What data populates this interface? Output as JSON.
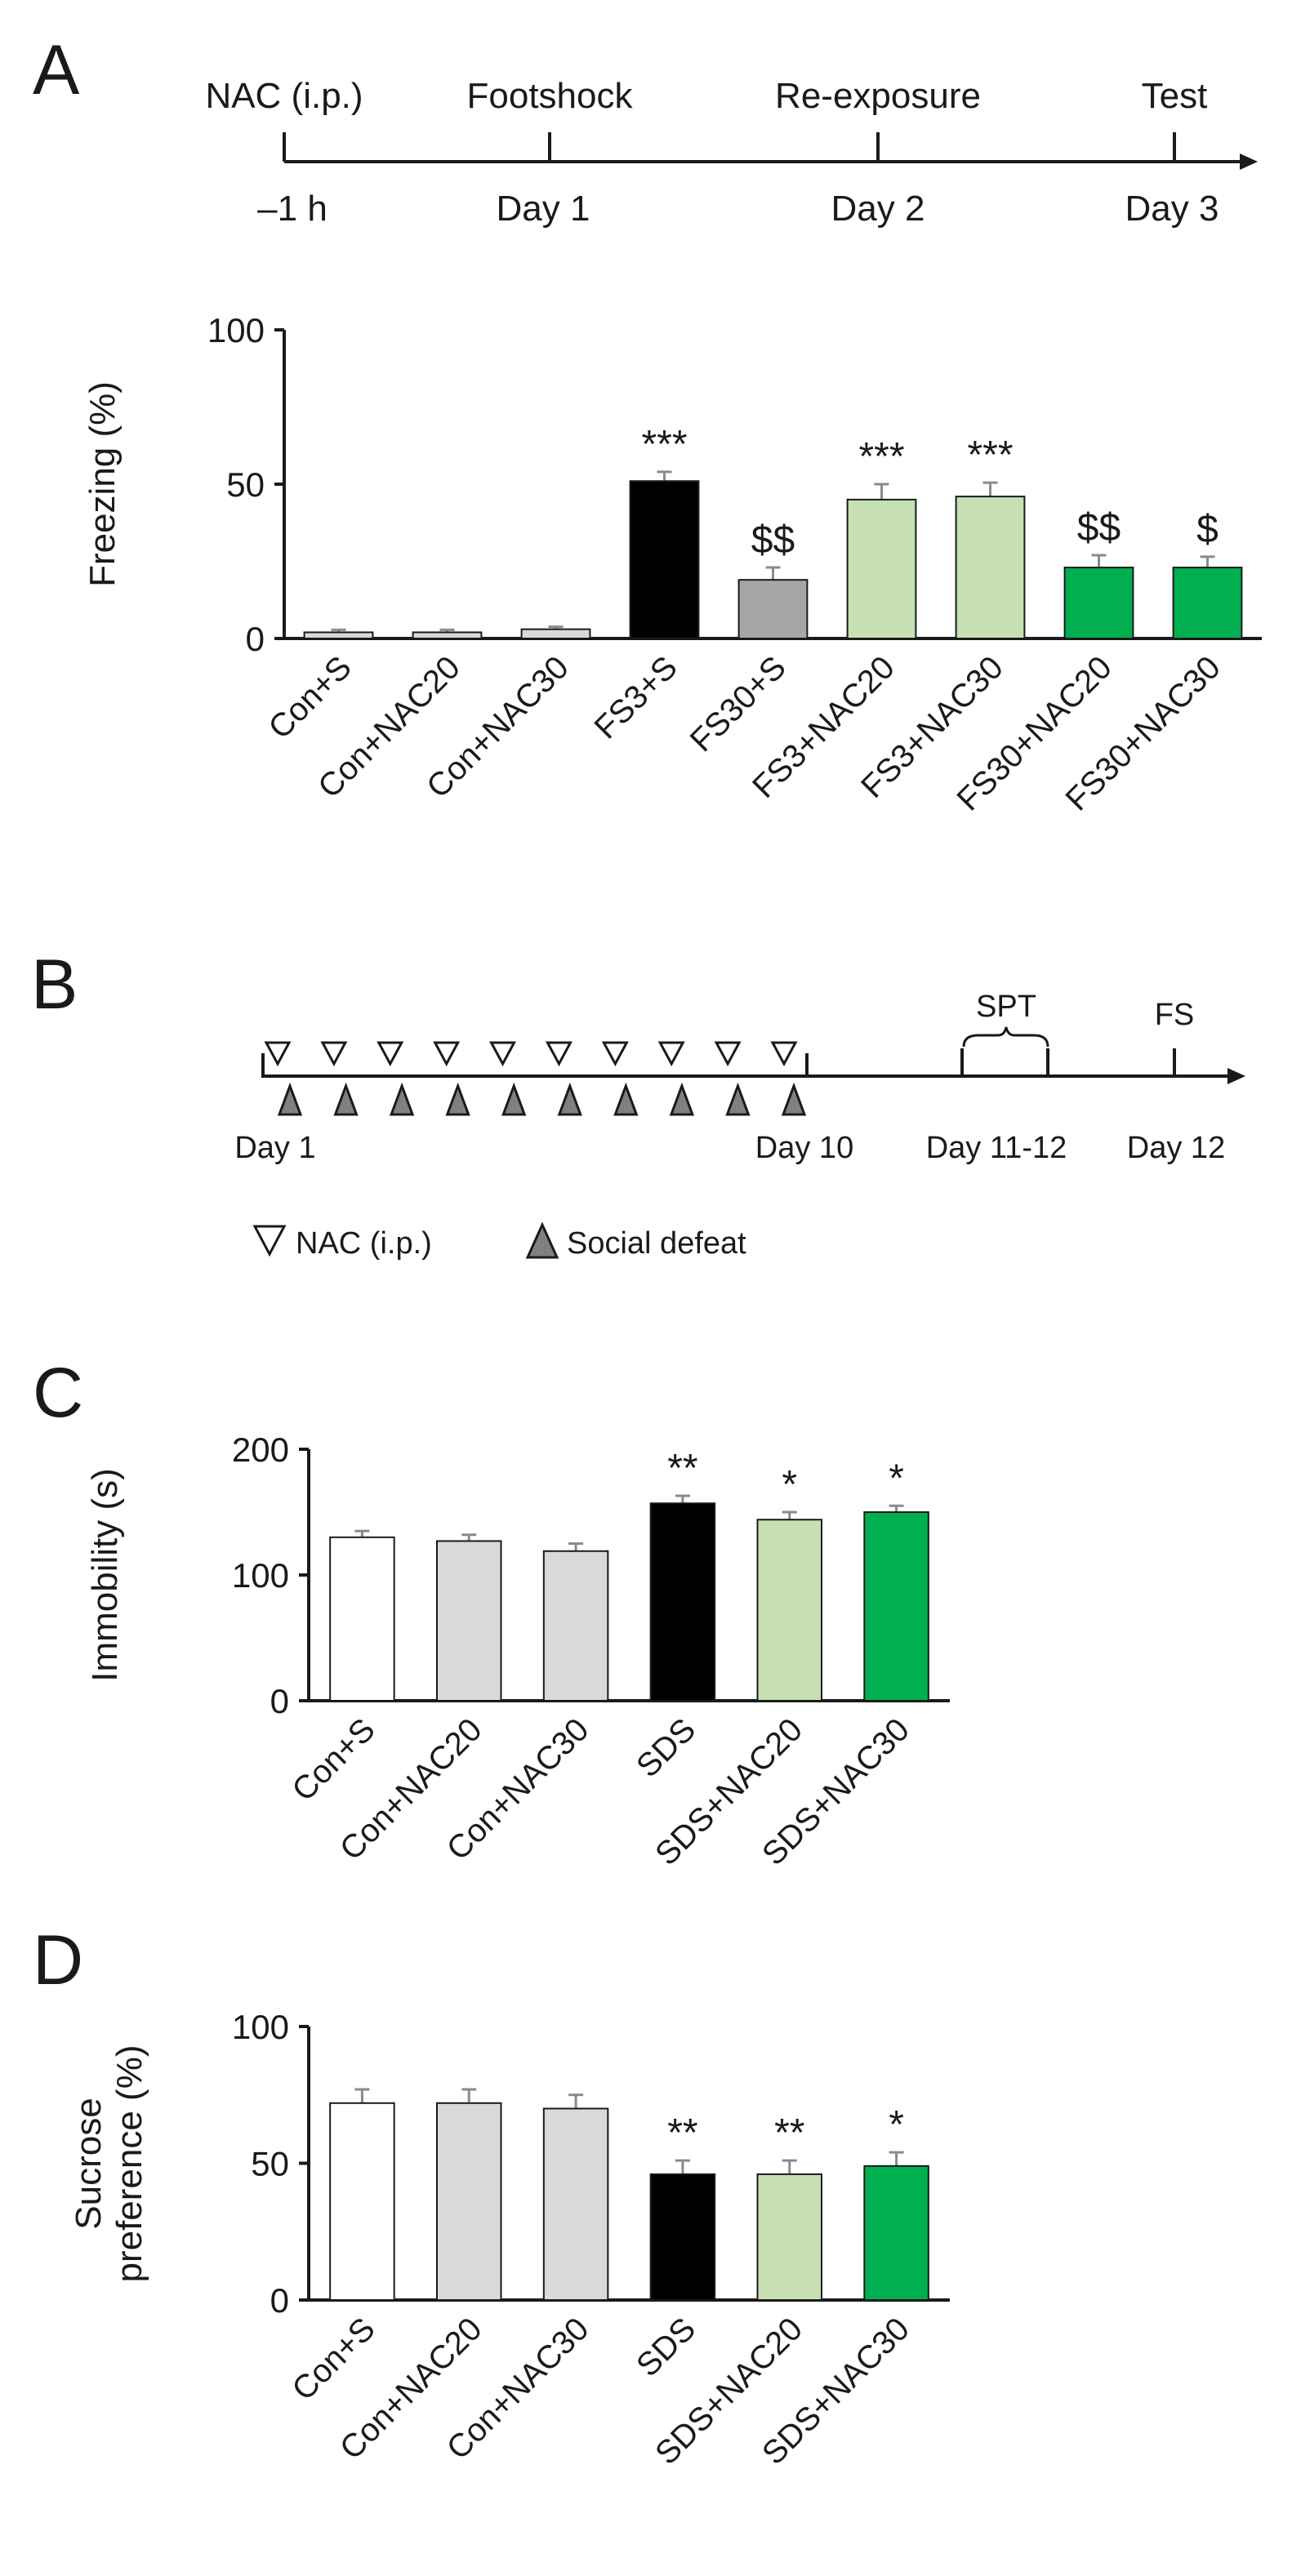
{
  "panel_letters": [
    "A",
    "B",
    "C",
    "D"
  ],
  "timeline_a": {
    "events": [
      {
        "top": "NAC (i.p.)",
        "bottom": "–1 h"
      },
      {
        "top": "Footshock",
        "bottom": "Day 1"
      },
      {
        "top": "Re-exposure",
        "bottom": "Day 2"
      },
      {
        "top": "Test",
        "bottom": "Day 3"
      }
    ]
  },
  "timeline_b": {
    "nac_count": 10,
    "defeat_count": 10,
    "labels": {
      "day1": "Day 1",
      "day10": "Day 10",
      "day11_12": "Day 11-12",
      "day12": "Day 12",
      "spt": "SPT",
      "fs": "FS"
    },
    "legend": {
      "nac": "NAC (i.p.)",
      "defeat": "Social defeat"
    }
  },
  "colors": {
    "white": "#ffffff",
    "light_gray": "#d9d9d9",
    "gray": "#a6a6a6",
    "black": "#000000",
    "light_green": "#c6e0b4",
    "green": "#00b050"
  },
  "chart_data": [
    {
      "panel": "A",
      "type": "bar",
      "ylabel": "Freezing (%)",
      "ylim": [
        0,
        100
      ],
      "yticks": [
        0,
        50,
        100
      ],
      "categories": [
        "Con+S",
        "Con+NAC20",
        "Con+NAC30",
        "FS3+S",
        "FS30+S",
        "FS3+NAC20",
        "FS3+NAC30",
        "FS30+NAC20",
        "FS30+NAC30"
      ],
      "values": [
        2,
        2,
        3,
        51,
        19,
        45,
        46,
        23,
        23
      ],
      "errors": [
        0.8,
        0.8,
        0.8,
        3,
        4,
        5,
        4.5,
        4,
        3.5
      ],
      "fill_keys": [
        "light_gray",
        "light_gray",
        "light_gray",
        "black",
        "gray",
        "light_green",
        "light_green",
        "green",
        "green"
      ],
      "significance": [
        "",
        "",
        "",
        "***",
        "$$",
        "***",
        "***",
        "$$",
        "$"
      ]
    },
    {
      "panel": "C",
      "type": "bar",
      "ylabel": "Immobility (s)",
      "ylim": [
        0,
        200
      ],
      "yticks": [
        0,
        100,
        200
      ],
      "categories": [
        "Con+S",
        "Con+NAC20",
        "Con+NAC30",
        "SDS",
        "SDS+NAC20",
        "SDS+NAC30"
      ],
      "values": [
        130,
        127,
        119,
        157,
        144,
        150
      ],
      "errors": [
        5,
        5,
        6,
        6,
        6,
        5
      ],
      "fill_keys": [
        "white",
        "light_gray",
        "light_gray",
        "black",
        "light_green",
        "green"
      ],
      "significance": [
        "",
        "",
        "",
        "**",
        "*",
        "*"
      ]
    },
    {
      "panel": "D",
      "type": "bar",
      "ylabel_lines": [
        "Sucrose",
        "preference (%)"
      ],
      "ylim": [
        0,
        100
      ],
      "yticks": [
        0,
        50,
        100
      ],
      "categories": [
        "Con+S",
        "Con+NAC20",
        "Con+NAC30",
        "SDS",
        "SDS+NAC20",
        "SDS+NAC30"
      ],
      "values": [
        72,
        72,
        70,
        46,
        46,
        49
      ],
      "errors": [
        5,
        5,
        5,
        5,
        5,
        5
      ],
      "fill_keys": [
        "white",
        "light_gray",
        "light_gray",
        "black",
        "light_green",
        "green"
      ],
      "significance": [
        "",
        "",
        "",
        "**",
        "**",
        "*"
      ]
    }
  ]
}
